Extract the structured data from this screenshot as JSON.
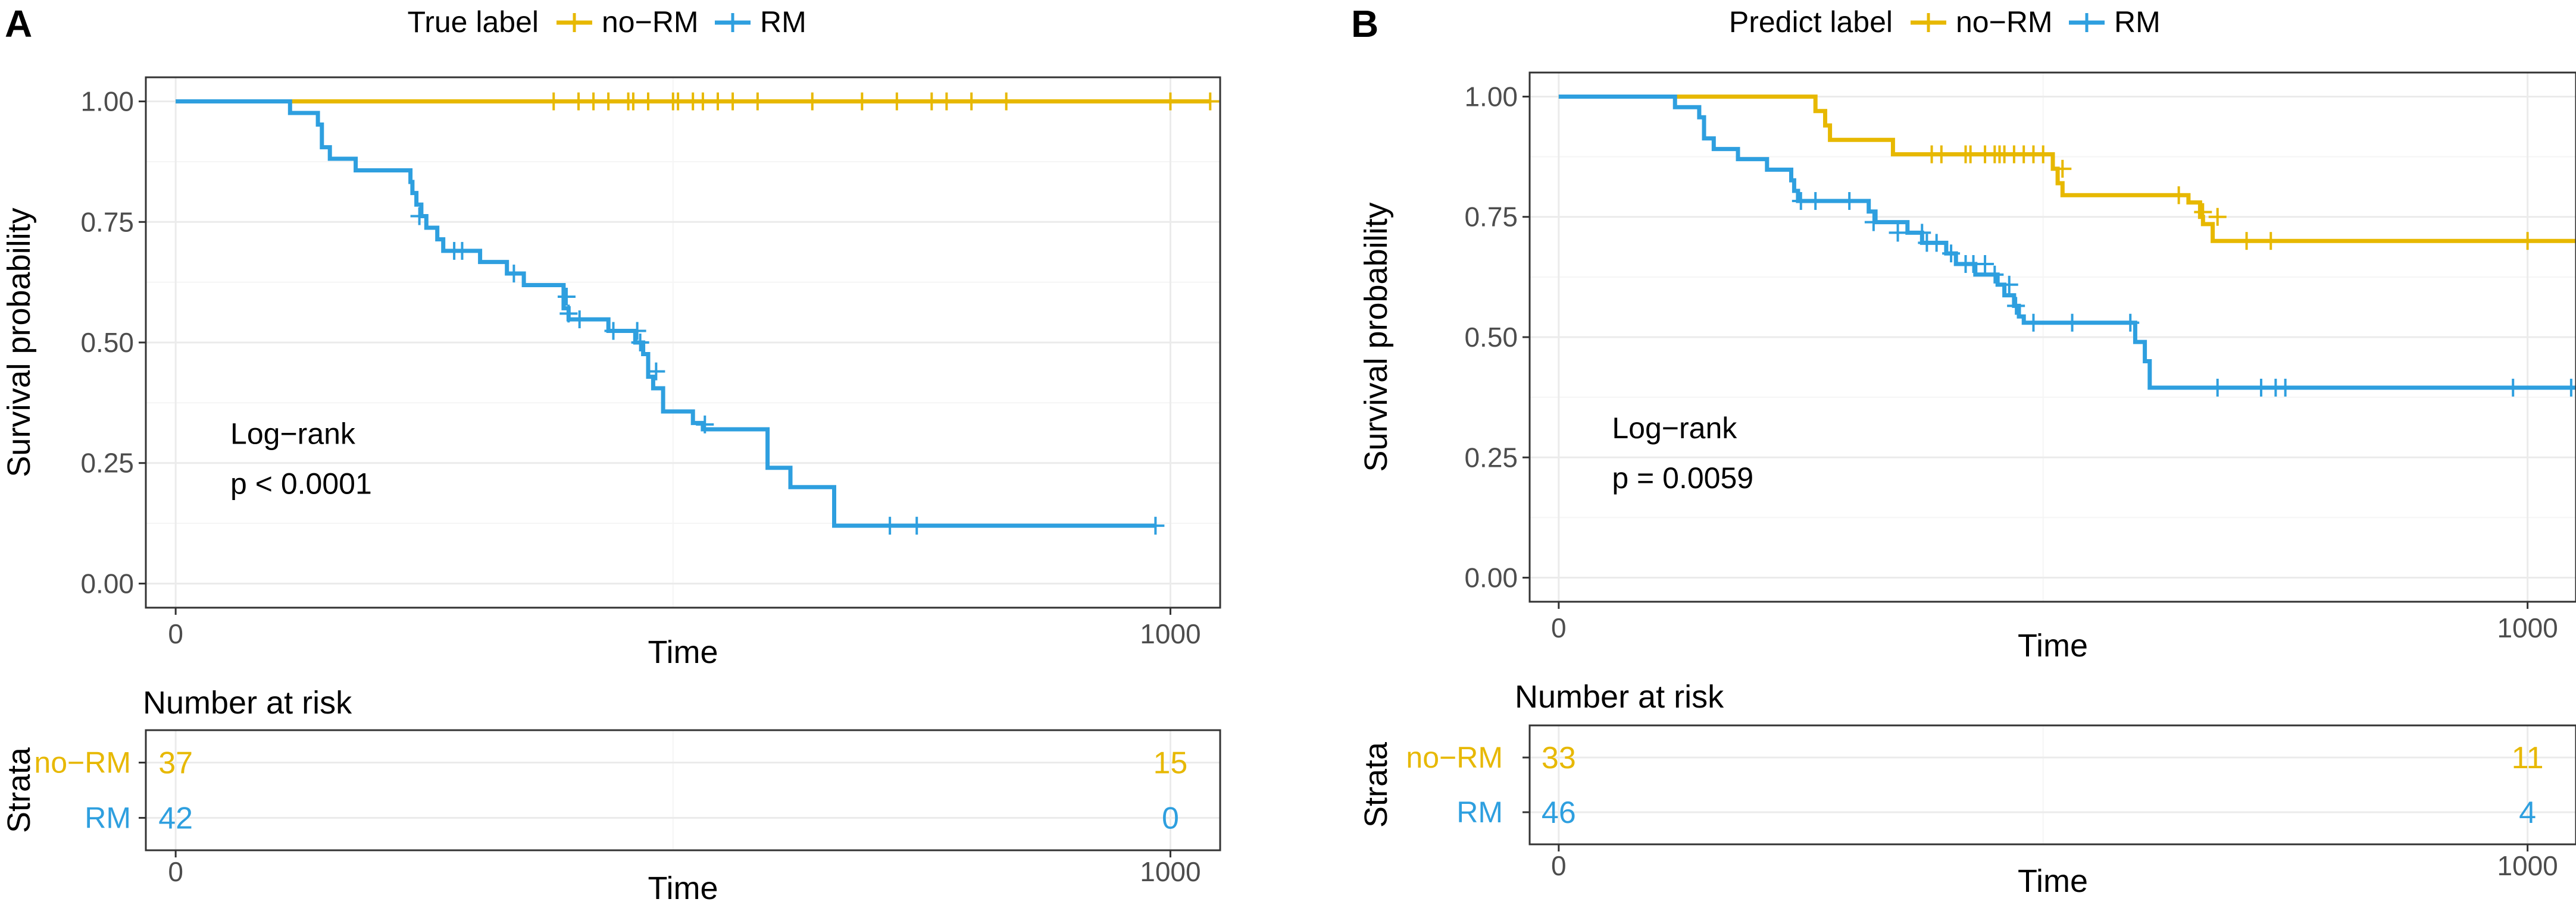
{
  "chart_data": [
    {
      "type": "line",
      "subtype": "kaplan-meier",
      "panel_label": "A",
      "legend_title": "True label",
      "legend_position": "top",
      "xlabel": "Time",
      "ylabel": "Survival probability",
      "xlim": [
        -30,
        1050
      ],
      "ylim": [
        -0.05,
        1.05
      ],
      "x_ticks": [
        0,
        1000
      ],
      "x_tick_labels": [
        "0",
        "1000"
      ],
      "y_ticks": [
        0,
        0.25,
        0.5,
        0.75,
        1
      ],
      "y_tick_labels": [
        "0.00",
        "0.25",
        "0.50",
        "0.75",
        "1.00"
      ],
      "grid": true,
      "annotation": {
        "line1": "Log−rank",
        "line2": "p < 0.0001",
        "x": 55,
        "y": 0.29
      },
      "series": [
        {
          "name": "no−RM",
          "color": "#E7B800",
          "steps": [
            [
              0,
              1.0
            ],
            [
              1040,
              1.0
            ]
          ],
          "censored": [
            [
              380,
              1.0
            ],
            [
              405,
              1.0
            ],
            [
              420,
              1.0
            ],
            [
              435,
              1.0
            ],
            [
              455,
              1.0
            ],
            [
              460,
              1.0
            ],
            [
              475,
              1.0
            ],
            [
              500,
              1.0
            ],
            [
              505,
              1.0
            ],
            [
              520,
              1.0
            ],
            [
              530,
              1.0
            ],
            [
              545,
              1.0
            ],
            [
              560,
              1.0
            ],
            [
              585,
              1.0
            ],
            [
              640,
              1.0
            ],
            [
              690,
              1.0
            ],
            [
              725,
              1.0
            ],
            [
              760,
              1.0
            ],
            [
              775,
              1.0
            ],
            [
              800,
              1.0
            ],
            [
              835,
              1.0
            ],
            [
              1000,
              1.0
            ],
            [
              1040,
              1.0
            ]
          ]
        },
        {
          "name": "RM",
          "color": "#2E9FDF",
          "steps": [
            [
              0,
              1.0
            ],
            [
              115,
              1.0
            ],
            [
              115,
              0.976
            ],
            [
              143,
              0.976
            ],
            [
              143,
              0.952
            ],
            [
              147,
              0.952
            ],
            [
              147,
              0.905
            ],
            [
              155,
              0.905
            ],
            [
              155,
              0.881
            ],
            [
              181,
              0.881
            ],
            [
              181,
              0.857
            ],
            [
              236,
              0.857
            ],
            [
              236,
              0.833
            ],
            [
              238,
              0.833
            ],
            [
              238,
              0.81
            ],
            [
              242,
              0.81
            ],
            [
              242,
              0.786
            ],
            [
              247,
              0.786
            ],
            [
              247,
              0.762
            ],
            [
              252,
              0.762
            ],
            [
              252,
              0.738
            ],
            [
              263,
              0.738
            ],
            [
              263,
              0.714
            ],
            [
              269,
              0.714
            ],
            [
              269,
              0.69
            ],
            [
              306,
              0.69
            ],
            [
              306,
              0.667
            ],
            [
              333,
              0.667
            ],
            [
              333,
              0.643
            ],
            [
              350,
              0.643
            ],
            [
              350,
              0.619
            ],
            [
              390,
              0.619
            ],
            [
              390,
              0.571
            ],
            [
              395,
              0.571
            ],
            [
              395,
              0.548
            ],
            [
              435,
              0.548
            ],
            [
              435,
              0.524
            ],
            [
              462,
              0.524
            ],
            [
              462,
              0.5
            ],
            [
              470,
              0.5
            ],
            [
              470,
              0.476
            ],
            [
              475,
              0.476
            ],
            [
              475,
              0.429
            ],
            [
              480,
              0.429
            ],
            [
              480,
              0.405
            ],
            [
              490,
              0.405
            ],
            [
              490,
              0.357
            ],
            [
              520,
              0.357
            ],
            [
              520,
              0.333
            ],
            [
              530,
              0.333
            ],
            [
              530,
              0.32
            ],
            [
              595,
              0.32
            ],
            [
              595,
              0.24
            ],
            [
              618,
              0.24
            ],
            [
              618,
              0.2
            ],
            [
              662,
              0.2
            ],
            [
              662,
              0.12
            ],
            [
              985,
              0.12
            ]
          ],
          "censored": [
            [
              245,
              0.762
            ],
            [
              280,
              0.69
            ],
            [
              288,
              0.69
            ],
            [
              340,
              0.643
            ],
            [
              393,
              0.595
            ],
            [
              395,
              0.56
            ],
            [
              406,
              0.548
            ],
            [
              440,
              0.524
            ],
            [
              464,
              0.524
            ],
            [
              467,
              0.5
            ],
            [
              483,
              0.44
            ],
            [
              532,
              0.33
            ],
            [
              718,
              0.12
            ],
            [
              745,
              0.12
            ],
            [
              985,
              0.12
            ]
          ]
        }
      ],
      "risk_table": {
        "title": "Number at risk",
        "ylabel": "Strata",
        "xlabel": "Time",
        "times": [
          "0",
          "1000"
        ],
        "rows": [
          {
            "label": "no−RM",
            "color": "#E7B800",
            "counts": [
              "37",
              "15"
            ]
          },
          {
            "label": "RM",
            "color": "#2E9FDF",
            "counts": [
              "42",
              "0"
            ]
          }
        ]
      }
    },
    {
      "type": "line",
      "subtype": "kaplan-meier",
      "panel_label": "B",
      "legend_title": "Predict label",
      "legend_position": "top",
      "xlabel": "Time",
      "ylabel": "Survival probability",
      "xlim": [
        -30,
        1050
      ],
      "ylim": [
        -0.05,
        1.05
      ],
      "x_ticks": [
        0,
        1000
      ],
      "x_tick_labels": [
        "0",
        "1000"
      ],
      "y_ticks": [
        0,
        0.25,
        0.5,
        0.75,
        1
      ],
      "y_tick_labels": [
        "0.00",
        "0.25",
        "0.50",
        "0.75",
        "1.00"
      ],
      "grid": true,
      "annotation": {
        "line1": "Log−rank",
        "line2": "p = 0.0059",
        "x": 55,
        "y": 0.29
      },
      "series": [
        {
          "name": "no−RM",
          "color": "#E7B800",
          "steps": [
            [
              0,
              1.0
            ],
            [
              265,
              1.0
            ],
            [
              265,
              0.97
            ],
            [
              275,
              0.97
            ],
            [
              275,
              0.94
            ],
            [
              280,
              0.94
            ],
            [
              280,
              0.91
            ],
            [
              345,
              0.91
            ],
            [
              345,
              0.88
            ],
            [
              510,
              0.88
            ],
            [
              510,
              0.85
            ],
            [
              515,
              0.85
            ],
            [
              515,
              0.82
            ],
            [
              520,
              0.82
            ],
            [
              520,
              0.795
            ],
            [
              650,
              0.795
            ],
            [
              650,
              0.78
            ],
            [
              662,
              0.78
            ],
            [
              662,
              0.75
            ],
            [
              665,
              0.75
            ],
            [
              665,
              0.735
            ],
            [
              675,
              0.735
            ],
            [
              675,
              0.7
            ],
            [
              1050,
              0.7
            ]
          ],
          "censored": [
            [
              385,
              0.88
            ],
            [
              395,
              0.88
            ],
            [
              420,
              0.88
            ],
            [
              425,
              0.88
            ],
            [
              440,
              0.88
            ],
            [
              450,
              0.88
            ],
            [
              455,
              0.88
            ],
            [
              460,
              0.88
            ],
            [
              470,
              0.88
            ],
            [
              480,
              0.88
            ],
            [
              490,
              0.88
            ],
            [
              500,
              0.88
            ],
            [
              520,
              0.85
            ],
            [
              640,
              0.795
            ],
            [
              665,
              0.76
            ],
            [
              680,
              0.75
            ],
            [
              710,
              0.7
            ],
            [
              735,
              0.7
            ],
            [
              1000,
              0.7
            ]
          ]
        },
        {
          "name": "RM",
          "color": "#2E9FDF",
          "steps": [
            [
              0,
              1.0
            ],
            [
              120,
              1.0
            ],
            [
              120,
              0.978
            ],
            [
              145,
              0.978
            ],
            [
              145,
              0.957
            ],
            [
              150,
              0.957
            ],
            [
              150,
              0.913
            ],
            [
              160,
              0.913
            ],
            [
              160,
              0.891
            ],
            [
              185,
              0.891
            ],
            [
              185,
              0.87
            ],
            [
              215,
              0.87
            ],
            [
              215,
              0.848
            ],
            [
              240,
              0.848
            ],
            [
              240,
              0.826
            ],
            [
              243,
              0.826
            ],
            [
              243,
              0.804
            ],
            [
              247,
              0.804
            ],
            [
              247,
              0.783
            ],
            [
              320,
              0.783
            ],
            [
              320,
              0.761
            ],
            [
              327,
              0.761
            ],
            [
              327,
              0.739
            ],
            [
              360,
              0.739
            ],
            [
              360,
              0.717
            ],
            [
              375,
              0.717
            ],
            [
              375,
              0.696
            ],
            [
              400,
              0.696
            ],
            [
              400,
              0.674
            ],
            [
              410,
              0.674
            ],
            [
              410,
              0.652
            ],
            [
              430,
              0.652
            ],
            [
              430,
              0.63
            ],
            [
              453,
              0.63
            ],
            [
              453,
              0.609
            ],
            [
              460,
              0.609
            ],
            [
              460,
              0.587
            ],
            [
              470,
              0.587
            ],
            [
              470,
              0.565
            ],
            [
              475,
              0.565
            ],
            [
              475,
              0.543
            ],
            [
              480,
              0.543
            ],
            [
              480,
              0.53
            ],
            [
              595,
              0.53
            ],
            [
              595,
              0.49
            ],
            [
              605,
              0.49
            ],
            [
              605,
              0.45
            ],
            [
              610,
              0.45
            ],
            [
              610,
              0.395
            ],
            [
              1050,
              0.395
            ]
          ],
          "censored": [
            [
              250,
              0.783
            ],
            [
              265,
              0.783
            ],
            [
              300,
              0.783
            ],
            [
              325,
              0.739
            ],
            [
              350,
              0.717
            ],
            [
              375,
              0.717
            ],
            [
              380,
              0.696
            ],
            [
              390,
              0.696
            ],
            [
              405,
              0.674
            ],
            [
              420,
              0.652
            ],
            [
              428,
              0.652
            ],
            [
              440,
              0.652
            ],
            [
              450,
              0.63
            ],
            [
              465,
              0.609
            ],
            [
              472,
              0.565
            ],
            [
              490,
              0.53
            ],
            [
              530,
              0.53
            ],
            [
              590,
              0.53
            ],
            [
              680,
              0.395
            ],
            [
              725,
              0.395
            ],
            [
              740,
              0.395
            ],
            [
              750,
              0.395
            ],
            [
              985,
              0.395
            ],
            [
              1045,
              0.395
            ]
          ]
        }
      ],
      "risk_table": {
        "title": "Number at risk",
        "ylabel": "Strata",
        "xlabel": "Time",
        "times": [
          "0",
          "1000"
        ],
        "rows": [
          {
            "label": "no−RM",
            "color": "#E7B800",
            "counts": [
              "33",
              "11"
            ]
          },
          {
            "label": "RM",
            "color": "#2E9FDF",
            "counts": [
              "46",
              "4"
            ]
          }
        ]
      }
    }
  ]
}
